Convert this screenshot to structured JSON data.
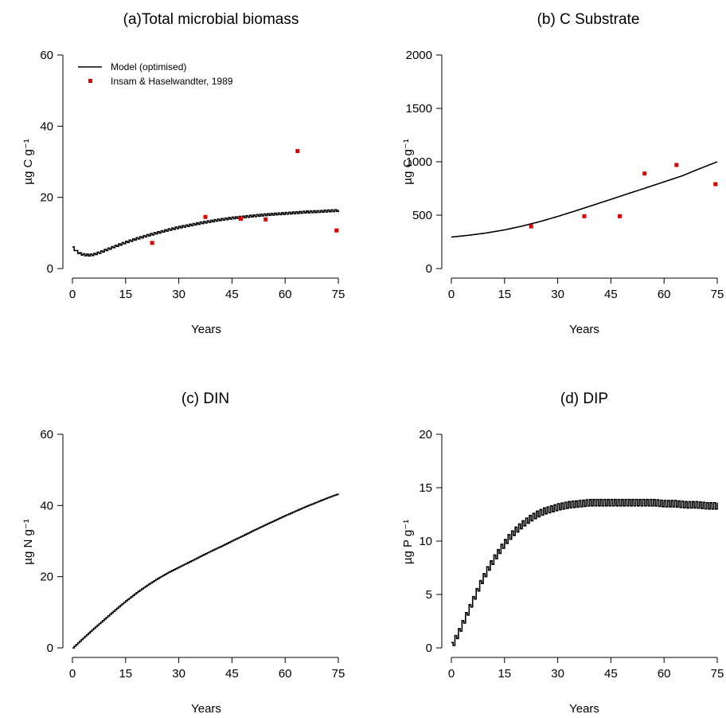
{
  "chart_data": [
    {
      "type": "line",
      "title": "(a)Total microbial biomass",
      "xlabel": "Years",
      "ylabel": "µg C g⁻¹",
      "xlim": [
        0,
        75
      ],
      "ylim": [
        0,
        60
      ],
      "xticks": [
        0,
        15,
        30,
        45,
        60,
        75
      ],
      "yticks": [
        0,
        20,
        40,
        60
      ],
      "grid": false,
      "legend": {
        "position": "top-left",
        "entries": [
          {
            "label": "Model (optimised)",
            "kind": "line",
            "color": "#000000"
          },
          {
            "label": "Insam & Haselwandter, 1989",
            "kind": "point",
            "color": "#e00000"
          }
        ]
      },
      "series": [
        {
          "kind": "line",
          "color": "#000000",
          "stepped": true,
          "x": [
            0,
            1,
            2,
            3,
            4,
            5,
            6,
            8,
            10,
            12,
            15,
            18,
            21,
            24,
            27,
            30,
            33,
            36,
            39,
            42,
            45,
            48,
            51,
            54,
            57,
            60,
            63,
            66,
            69,
            72,
            75
          ],
          "y": [
            5.8,
            4.8,
            4.2,
            3.9,
            3.8,
            3.8,
            4.0,
            4.7,
            5.5,
            6.3,
            7.4,
            8.4,
            9.3,
            10.1,
            10.9,
            11.6,
            12.2,
            12.8,
            13.3,
            13.8,
            14.2,
            14.5,
            14.8,
            15.1,
            15.3,
            15.5,
            15.7,
            15.9,
            16.0,
            16.2,
            16.3
          ],
          "amplitude": 0.25
        },
        {
          "kind": "points",
          "color": "#e00000",
          "x": [
            22.5,
            37.5,
            47.5,
            54.5,
            63.5,
            74.5
          ],
          "y": [
            7.2,
            14.5,
            14.0,
            13.8,
            33.0,
            10.7
          ]
        }
      ]
    },
    {
      "type": "line",
      "title": "(b) C Substrate",
      "xlabel": "Years",
      "ylabel": "µg C g⁻¹",
      "xlim": [
        0,
        75
      ],
      "ylim": [
        0,
        2000
      ],
      "xticks": [
        0,
        15,
        30,
        45,
        60,
        75
      ],
      "yticks": [
        0,
        500,
        1000,
        1500,
        2000
      ],
      "grid": false,
      "series": [
        {
          "kind": "line",
          "color": "#000000",
          "stepped": false,
          "x": [
            0,
            5,
            10,
            15,
            20,
            25,
            30,
            35,
            40,
            45,
            50,
            55,
            60,
            65,
            70,
            75
          ],
          "y": [
            295,
            312,
            334,
            362,
            398,
            440,
            488,
            540,
            594,
            648,
            703,
            757,
            812,
            867,
            935,
            1000
          ]
        },
        {
          "kind": "points",
          "color": "#e00000",
          "x": [
            22.5,
            37.5,
            47.5,
            54.5,
            63.5,
            74.5
          ],
          "y": [
            395,
            490,
            490,
            890,
            970,
            790
          ]
        }
      ]
    },
    {
      "type": "line",
      "title": "(c) DIN",
      "xlabel": "Years",
      "ylabel": "µg N g⁻¹",
      "xlim": [
        0,
        75
      ],
      "ylim": [
        0,
        60
      ],
      "xticks": [
        0,
        15,
        30,
        45,
        60,
        75
      ],
      "yticks": [
        0,
        20,
        40,
        60
      ],
      "grid": false,
      "series": [
        {
          "kind": "line",
          "color": "#000000",
          "stepped": true,
          "x": [
            0,
            3,
            6,
            9,
            12,
            15,
            18,
            21,
            24,
            27,
            30,
            33,
            36,
            39,
            42,
            45,
            48,
            51,
            54,
            57,
            60,
            63,
            66,
            69,
            72,
            75
          ],
          "y": [
            0.0,
            2.8,
            5.5,
            8.1,
            10.7,
            13.2,
            15.5,
            17.6,
            19.5,
            21.2,
            22.7,
            24.2,
            25.7,
            27.2,
            28.6,
            30.1,
            31.5,
            33.0,
            34.4,
            35.8,
            37.2,
            38.5,
            39.8,
            41.0,
            42.2,
            43.3
          ]
        }
      ]
    },
    {
      "type": "line",
      "title": "(d) DIP",
      "xlabel": "Years",
      "ylabel": "µg P g⁻¹",
      "xlim": [
        0,
        75
      ],
      "ylim": [
        0,
        20
      ],
      "xticks": [
        0,
        15,
        30,
        45,
        60,
        75
      ],
      "yticks": [
        0,
        5,
        10,
        15,
        20
      ],
      "grid": false,
      "series": [
        {
          "kind": "line",
          "color": "#000000",
          "stepped": true,
          "x": [
            0,
            2,
            4,
            6,
            8,
            10,
            12,
            14,
            16,
            18,
            20,
            22,
            24,
            26,
            28,
            30,
            33,
            36,
            39,
            42,
            45,
            48,
            51,
            54,
            57,
            60,
            63,
            66,
            69,
            72,
            75
          ],
          "y": [
            0.2,
            1.5,
            3.0,
            4.5,
            6.0,
            7.3,
            8.4,
            9.4,
            10.3,
            11.0,
            11.6,
            12.1,
            12.5,
            12.8,
            13.0,
            13.2,
            13.4,
            13.5,
            13.6,
            13.6,
            13.6,
            13.6,
            13.6,
            13.6,
            13.6,
            13.5,
            13.5,
            13.4,
            13.4,
            13.3,
            13.3
          ],
          "amplitude": 0.3
        }
      ]
    }
  ]
}
